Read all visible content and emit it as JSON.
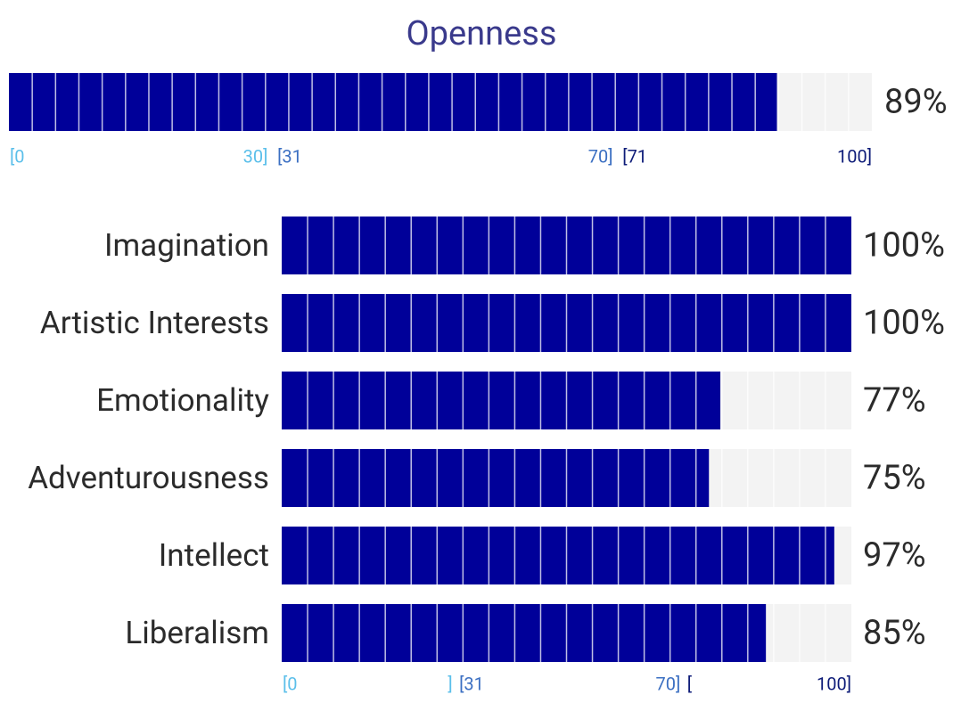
{
  "chart_data": [
    {
      "type": "bar",
      "orientation": "horizontal",
      "title": "Openness",
      "values": [
        89
      ],
      "value_labels": [
        "89%"
      ],
      "color": "#000099",
      "track_color": "#f3f3f3",
      "xlim": [
        0,
        100
      ],
      "xticks": [
        {
          "value": 0,
          "label": "[0"
        },
        {
          "value": 30,
          "label": "30]"
        },
        {
          "value": 31,
          "label": "[31"
        },
        {
          "value": 70,
          "label": "70]"
        },
        {
          "value": 71,
          "label": "[71"
        },
        {
          "value": 100,
          "label": "100]"
        }
      ],
      "tick_colors": [
        "#5bbfea",
        "#5bbfea",
        "#3b6fc2",
        "#3b6fc2",
        "#0d1b78",
        "#0d1b78"
      ]
    },
    {
      "type": "bar",
      "orientation": "horizontal",
      "categories": [
        "Imagination",
        "Artistic Interests",
        "Emotionality",
        "Adventurousness",
        "Intellect",
        "Liberalism"
      ],
      "values": [
        100,
        100,
        77,
        75,
        97,
        85
      ],
      "value_labels": [
        "100%",
        "100%",
        "77%",
        "75%",
        "97%",
        "85%"
      ],
      "color": "#000099",
      "track_color": "#f3f3f3",
      "xlim": [
        0,
        100
      ],
      "xticks": [
        {
          "value": 0,
          "label": "[0"
        },
        {
          "value": 30,
          "label": "]"
        },
        {
          "value": 31,
          "label": "[31"
        },
        {
          "value": 70,
          "label": "70]"
        },
        {
          "value": 71,
          "label": "["
        },
        {
          "value": 100,
          "label": "100]"
        }
      ],
      "tick_colors": [
        "#5bbfea",
        "#5bbfea",
        "#3b6fc2",
        "#3b6fc2",
        "#0d1b78",
        "#0d1b78"
      ]
    }
  ]
}
